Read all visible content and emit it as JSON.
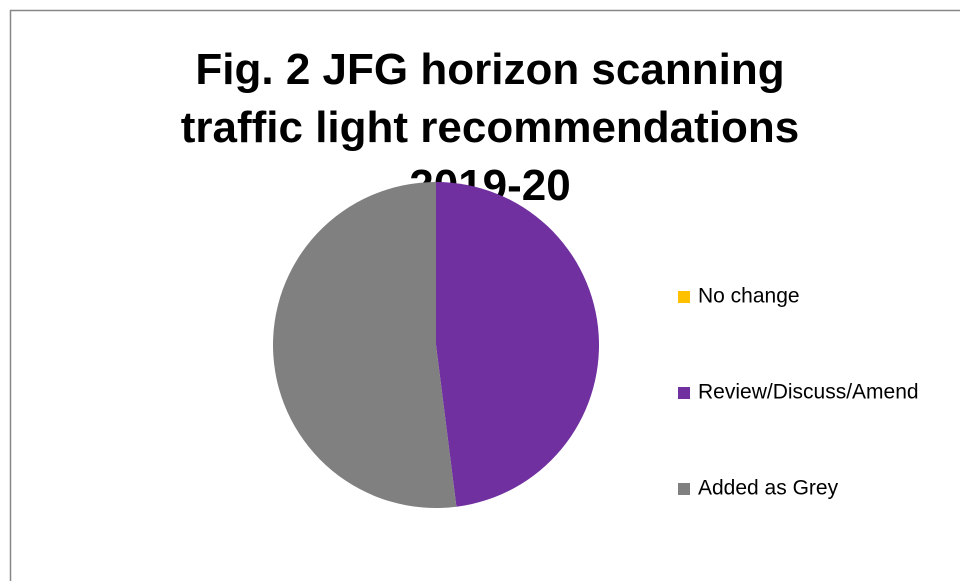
{
  "chart_data": {
    "type": "pie",
    "title": "Fig. 2 JFG horizon scanning traffic light recommendations 2019-20",
    "categories": [
      "No change",
      "Review/Discuss/Amend",
      "Added as Grey"
    ],
    "values": [
      0,
      48,
      52
    ],
    "colors": [
      "#ffc000",
      "#7030a0",
      "#808080"
    ],
    "legend": "right"
  }
}
